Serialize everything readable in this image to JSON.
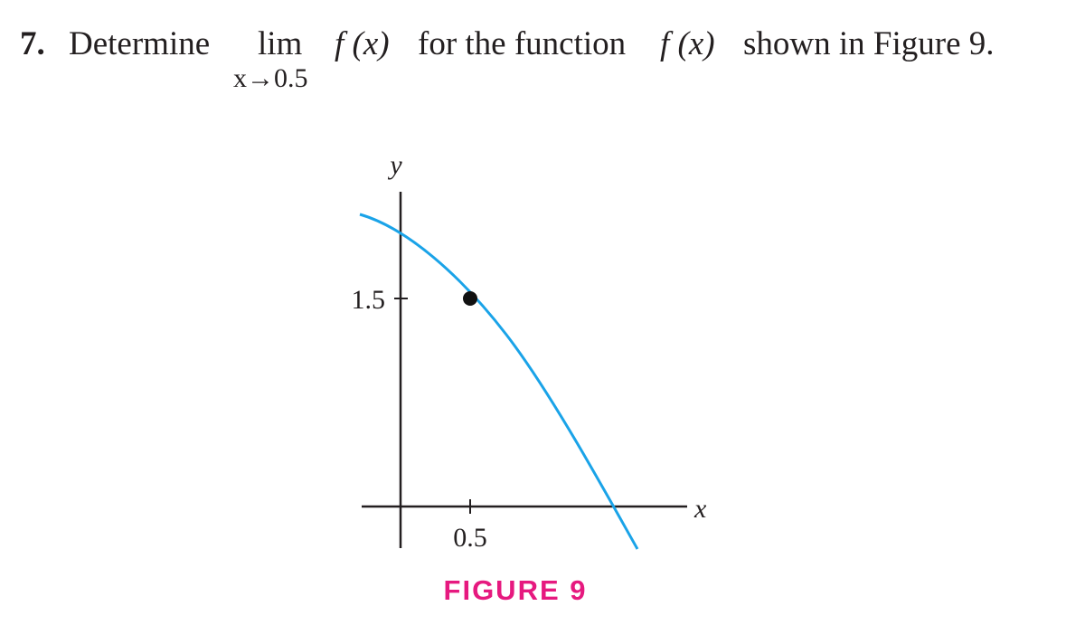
{
  "problem": {
    "number": "7.",
    "lead": "Determine",
    "lim": "lim",
    "approach": "x→0.5",
    "expression": "f (x)",
    "middle": "for the function",
    "function": "f (x)",
    "tail": "shown in Figure 9."
  },
  "figure": {
    "y_label": "y",
    "y_tick": "1.5",
    "x_tick": "0.5",
    "x_label": "x",
    "caption": "FIGURE 9"
  }
}
